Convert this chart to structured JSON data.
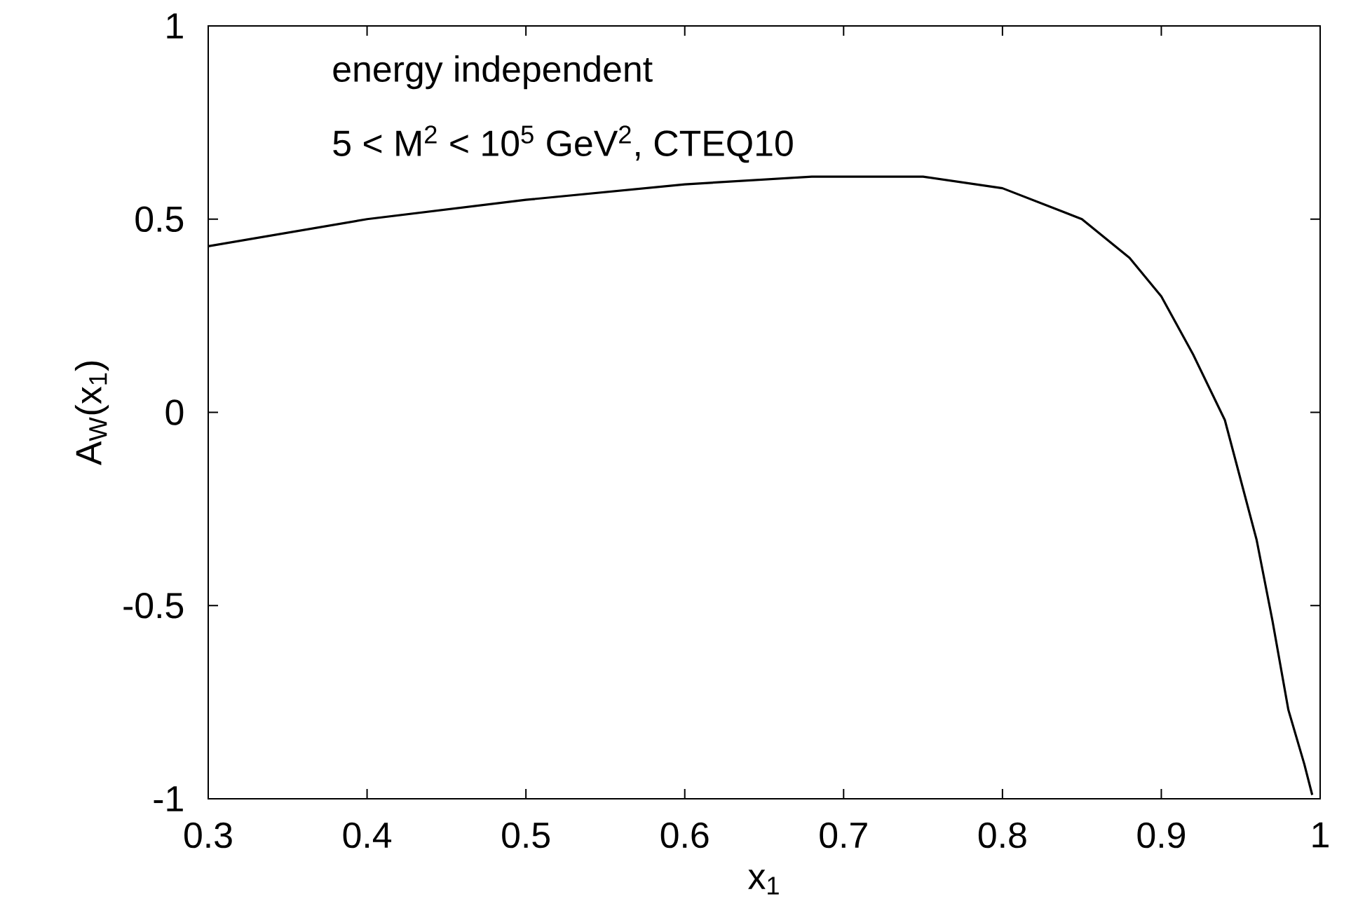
{
  "chart_data": {
    "type": "line",
    "xlabel": "x$_{1}$",
    "ylabel": "A$_{W}$(x$_{1}$)",
    "annotations": [
      "energy independent",
      "5 < M$^{2}$ < 10$^{5}$ GeV$^{2}$, CTEQ10"
    ],
    "x": [
      0.3,
      0.4,
      0.5,
      0.6,
      0.68,
      0.75,
      0.8,
      0.85,
      0.88,
      0.9,
      0.92,
      0.94,
      0.96,
      0.97,
      0.98,
      0.99,
      0.995
    ],
    "series": [
      {
        "color": "#000000",
        "values": [
          0.43,
          0.5,
          0.55,
          0.59,
          0.61,
          0.61,
          0.58,
          0.5,
          0.4,
          0.3,
          0.15,
          -0.02,
          -0.33,
          -0.54,
          -0.77,
          -0.91,
          -0.99
        ]
      }
    ],
    "xlim": [
      0.3,
      1
    ],
    "ylim": [
      -1,
      1
    ],
    "xticks": [
      0.3,
      0.4,
      0.5,
      0.6,
      0.7,
      0.8,
      0.9,
      1
    ],
    "yticks": [
      -1,
      -0.5,
      0,
      0.5,
      1
    ],
    "grid": false,
    "marker": "none",
    "line_style": "solid"
  }
}
